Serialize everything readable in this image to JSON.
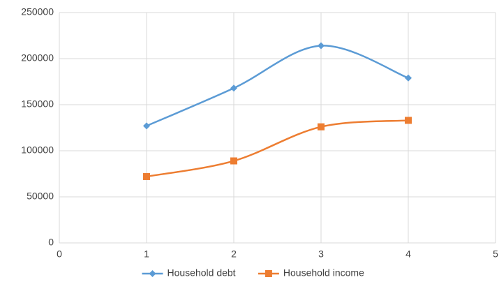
{
  "chart_data": {
    "type": "line",
    "smooth": true,
    "grid": true,
    "legend": "bottom",
    "x": [
      1,
      2,
      3,
      4
    ],
    "xlim": [
      0,
      5
    ],
    "xticks": [
      0,
      1,
      2,
      3,
      4,
      5
    ],
    "ylim": [
      0,
      250000
    ],
    "yticks": [
      0,
      50000,
      100000,
      150000,
      200000,
      250000
    ],
    "series": [
      {
        "name": "Household debt",
        "color": "#5b9bd5",
        "marker": "diamond",
        "values": [
          127000,
          168000,
          214000,
          179000
        ]
      },
      {
        "name": "Household income",
        "color": "#ed7d31",
        "marker": "square",
        "values": [
          72000,
          89000,
          126000,
          133000
        ]
      }
    ]
  }
}
